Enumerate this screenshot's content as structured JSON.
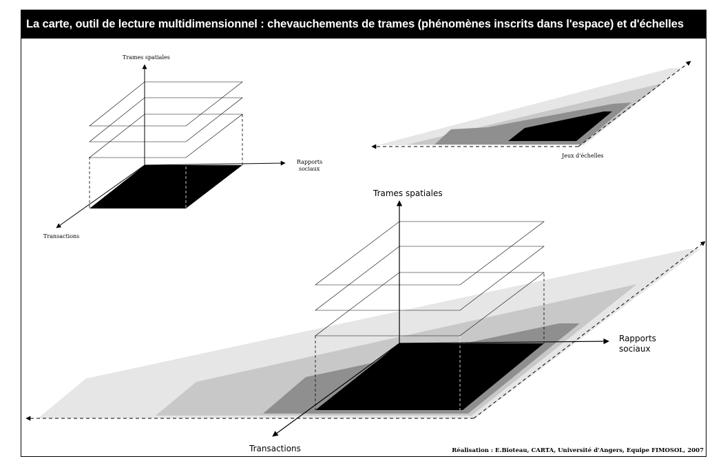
{
  "title": "La carte, outil de lecture multidimensionnel : chevauchements de trames (phénomènes inscrits dans l'espace) et d'échelles",
  "small_diagram": {
    "axis_vertical": "Trames spatiales",
    "axis_right_line1": "Rapports",
    "axis_right_line2": "sociaux",
    "axis_left": "Transactions"
  },
  "scales_diagram": {
    "caption": "Jeux d'échelles"
  },
  "large_diagram": {
    "axis_vertical": "Trames spatiales",
    "axis_right_line1": "Rapports",
    "axis_right_line2": "sociaux",
    "axis_left": "Transactions"
  },
  "credit": "Réalisation : E.Bioteau, CARTA, Université d'Angers, Equipe FIMOSOL, 2007",
  "colors": {
    "plane_lightest": "#e6e6e6",
    "plane_light": "#c8c8c8",
    "plane_mid": "#8f8f8f",
    "plane_core": "#000000",
    "title_bar": "#000000"
  }
}
